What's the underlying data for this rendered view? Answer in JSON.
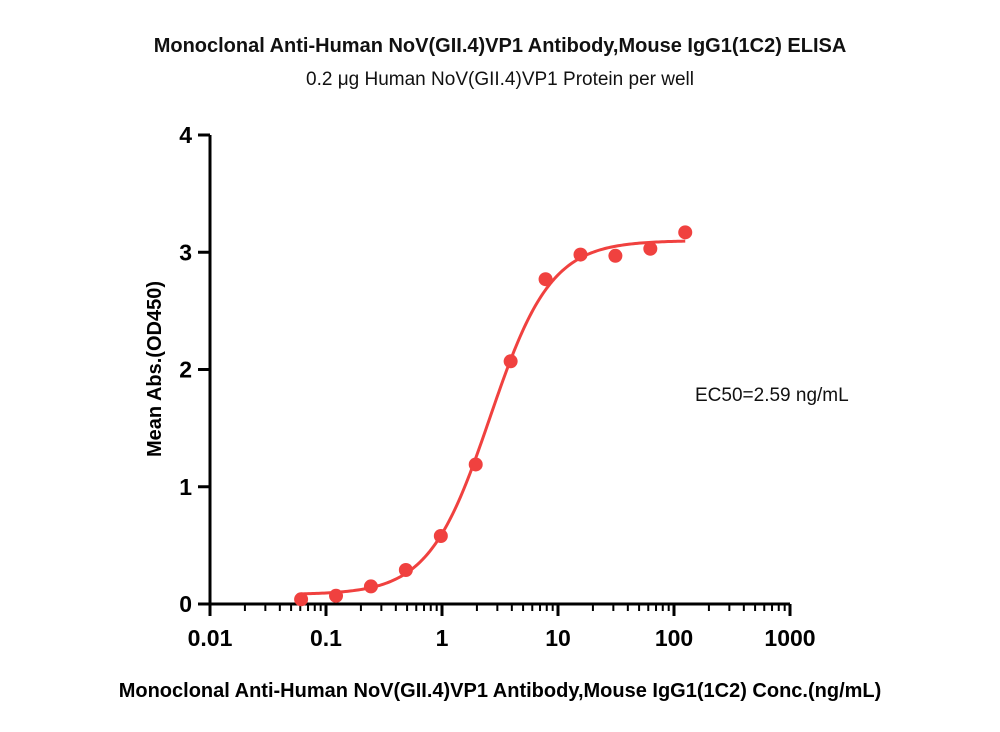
{
  "chart_data": {
    "type": "scatter",
    "title": "Monoclonal Anti-Human NoV(GII.4)VP1 Antibody,Mouse IgG1(1C2) ELISA",
    "subtitle": "0.2 μg  Human NoV(GII.4)VP1 Protein per well",
    "xlabel": "Monoclonal Anti-Human NoV(GII.4)VP1 Antibody,Mouse IgG1(1C2) Conc.(ng/mL)",
    "ylabel": "Mean Abs.(OD450)",
    "x_scale": "log",
    "xlim": [
      0.01,
      1000
    ],
    "ylim": [
      0,
      4
    ],
    "x_ticks": [
      {
        "value": 0.01,
        "label": "0.01"
      },
      {
        "value": 0.1,
        "label": "0.1"
      },
      {
        "value": 1,
        "label": "1"
      },
      {
        "value": 10,
        "label": "10"
      },
      {
        "value": 100,
        "label": "100"
      },
      {
        "value": 1000,
        "label": "1000"
      }
    ],
    "y_ticks": [
      {
        "value": 0,
        "label": "0"
      },
      {
        "value": 1,
        "label": "1"
      },
      {
        "value": 2,
        "label": "2"
      },
      {
        "value": 3,
        "label": "3"
      },
      {
        "value": 4,
        "label": "4"
      }
    ],
    "grid": false,
    "color": "#f0413f",
    "points": [
      {
        "x": 0.061,
        "y": 0.04
      },
      {
        "x": 0.122,
        "y": 0.07
      },
      {
        "x": 0.244,
        "y": 0.15
      },
      {
        "x": 0.488,
        "y": 0.29
      },
      {
        "x": 0.977,
        "y": 0.58
      },
      {
        "x": 1.953,
        "y": 1.19
      },
      {
        "x": 3.906,
        "y": 2.07
      },
      {
        "x": 7.813,
        "y": 2.77
      },
      {
        "x": 15.63,
        "y": 2.98
      },
      {
        "x": 31.25,
        "y": 2.97
      },
      {
        "x": 62.5,
        "y": 3.03
      },
      {
        "x": 125,
        "y": 3.17
      }
    ],
    "fit": {
      "bottom": 0.08,
      "top": 3.1,
      "ec50": 2.59,
      "hill": 1.65,
      "x_range": [
        0.061,
        125
      ]
    },
    "annotation": "EC50=2.59 ng/mL"
  }
}
